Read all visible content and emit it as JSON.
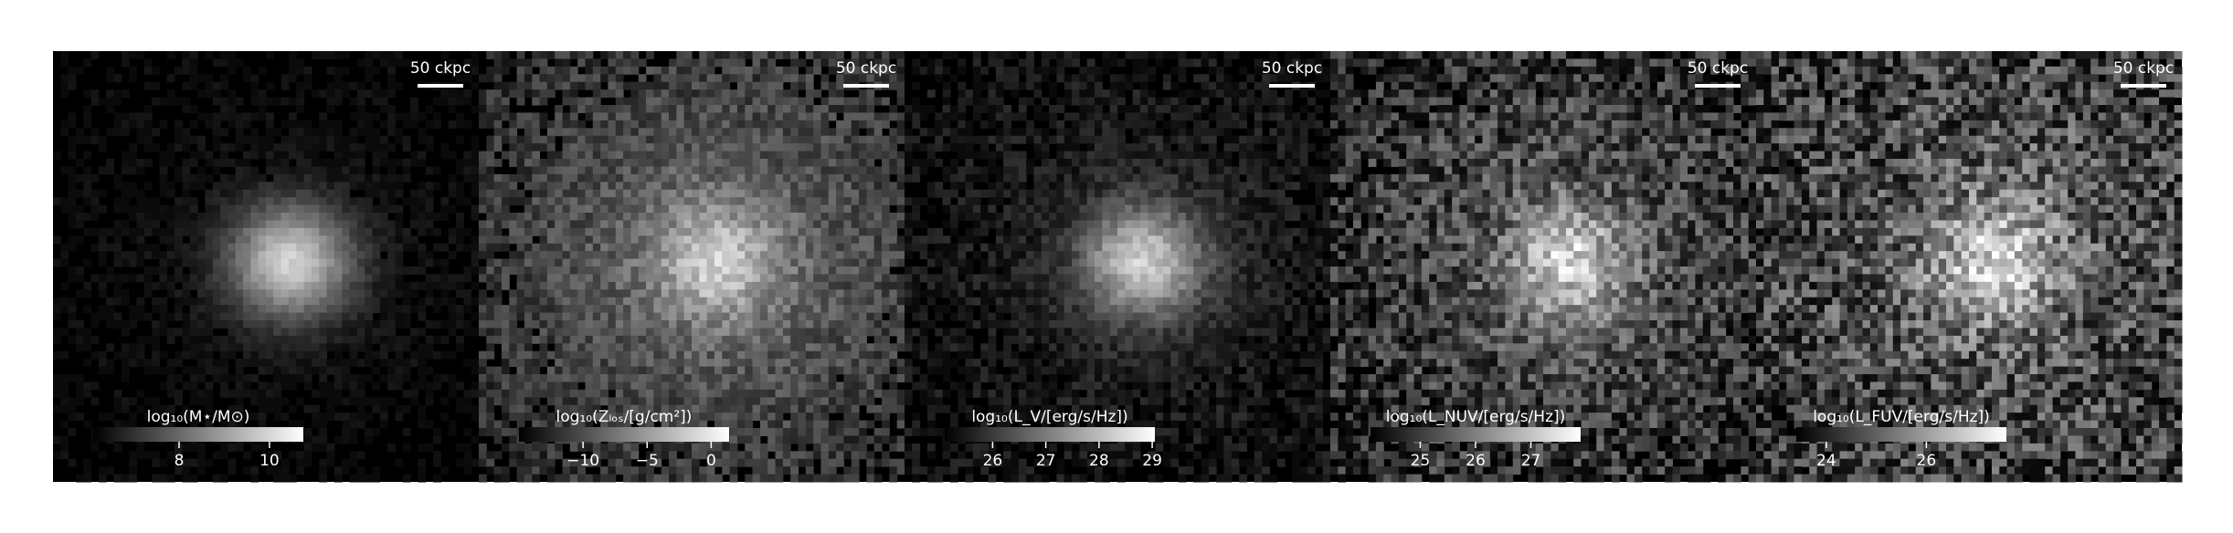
{
  "panels": [
    {
      "scale_bar": "50 ckpc",
      "colorbar": {
        "label": "log₁₀(M⋆/M⊙)",
        "range": [
          6.1,
          10.75
        ],
        "ticks": [
          8,
          10
        ]
      }
    },
    {
      "scale_bar": "50 ckpc",
      "colorbar": {
        "label": "log₁₀(Zₗₒₛ/[g/cm²])",
        "range": [
          -15,
          1.4
        ],
        "ticks": [
          {
            "value": -10,
            "label": "−10"
          },
          {
            "value": -5,
            "label": "−5"
          },
          0
        ]
      }
    },
    {
      "scale_bar": "50 ckpc",
      "colorbar": {
        "label": "log₁₀(L_V/[erg/s/Hz])",
        "range": [
          25.1,
          29.05
        ],
        "ticks": [
          26,
          27,
          28,
          29
        ]
      }
    },
    {
      "scale_bar": "50 ckpc",
      "colorbar": {
        "label": "log₁₀(L_NUV/[erg/s/Hz])",
        "range": [
          24.1,
          27.9
        ],
        "ticks": [
          25,
          26,
          27
        ]
      }
    },
    {
      "scale_bar": "50 ckpc",
      "colorbar": {
        "label": "log₁₀(L_FUV/[erg/s/Hz])",
        "range": [
          23.4,
          27.6
        ],
        "ticks": [
          24,
          26
        ]
      }
    }
  ]
}
